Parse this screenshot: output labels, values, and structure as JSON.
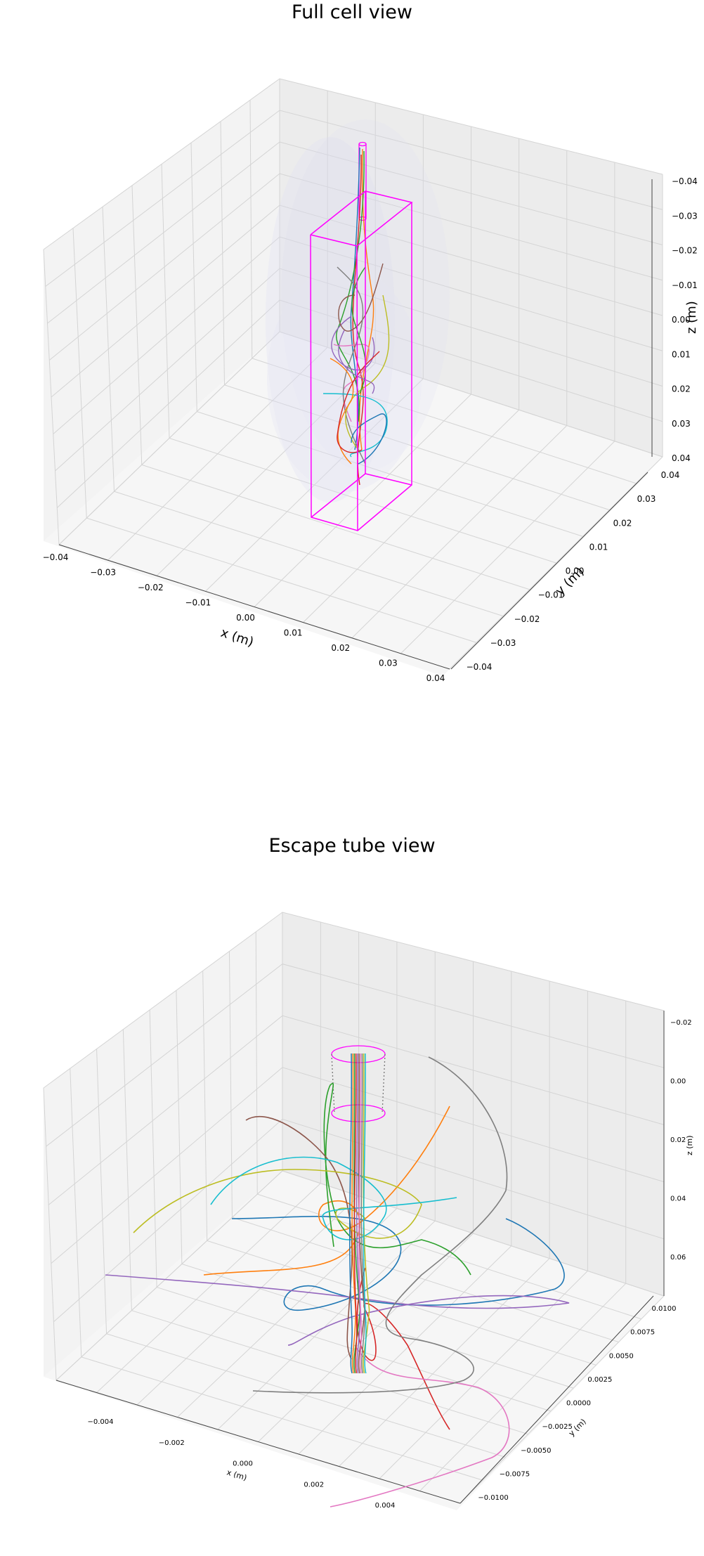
{
  "chart_data": [
    {
      "type": "line",
      "chart_kind": "3d-trajectories",
      "title": "Full cell view",
      "xlabel": "x (m)",
      "ylabel": "y (m)",
      "zlabel": "z (m)",
      "xlim": [
        -0.04,
        0.04
      ],
      "ylim": [
        -0.04,
        0.04
      ],
      "zlim": [
        -0.04,
        0.04
      ],
      "x_ticks": [
        "−0.04",
        "−0.03",
        "−0.02",
        "−0.01",
        "0.00",
        "0.01",
        "0.02",
        "0.03",
        "0.04"
      ],
      "y_ticks": [
        "−0.04",
        "−0.03",
        "−0.02",
        "−0.01",
        "0.00",
        "0.01",
        "0.02",
        "0.03",
        "0.04"
      ],
      "z_ticks": [
        "−0.04",
        "−0.03",
        "−0.02",
        "−0.01",
        "0.00",
        "0.01",
        "0.02",
        "0.03",
        "0.04"
      ],
      "grid": true,
      "outline_color": "#ff00ff",
      "series_colors": [
        "#1f77b4",
        "#ff7f0e",
        "#2ca02c",
        "#d62728",
        "#9467bd",
        "#8c564b",
        "#e377c2",
        "#7f7f7f",
        "#bcbd22",
        "#17becf"
      ]
    },
    {
      "type": "line",
      "chart_kind": "3d-trajectories",
      "title": "Escape tube view",
      "xlabel": "x (m)",
      "ylabel": "y (m)",
      "zlabel": "z (m)",
      "xlim": [
        -0.0055,
        0.0055
      ],
      "ylim": [
        -0.0105,
        0.0105
      ],
      "zlim": [
        -0.035,
        0.062
      ],
      "x_ticks": [
        "−0.004",
        "−0.002",
        "0.000",
        "0.002",
        "0.004"
      ],
      "y_ticks": [
        "−0.0100",
        "−0.0075",
        "−0.0050",
        "−0.0025",
        "0.0000",
        "0.0025",
        "0.0050",
        "0.0075",
        "0.0100"
      ],
      "z_ticks": [
        "−0.02",
        "0.00",
        "0.02",
        "0.04",
        "0.06"
      ],
      "grid": true,
      "outline_color": "#ff00ff",
      "series_colors": [
        "#1f77b4",
        "#ff7f0e",
        "#2ca02c",
        "#d62728",
        "#9467bd",
        "#8c564b",
        "#e377c2",
        "#7f7f7f",
        "#bcbd22",
        "#17becf"
      ]
    }
  ]
}
